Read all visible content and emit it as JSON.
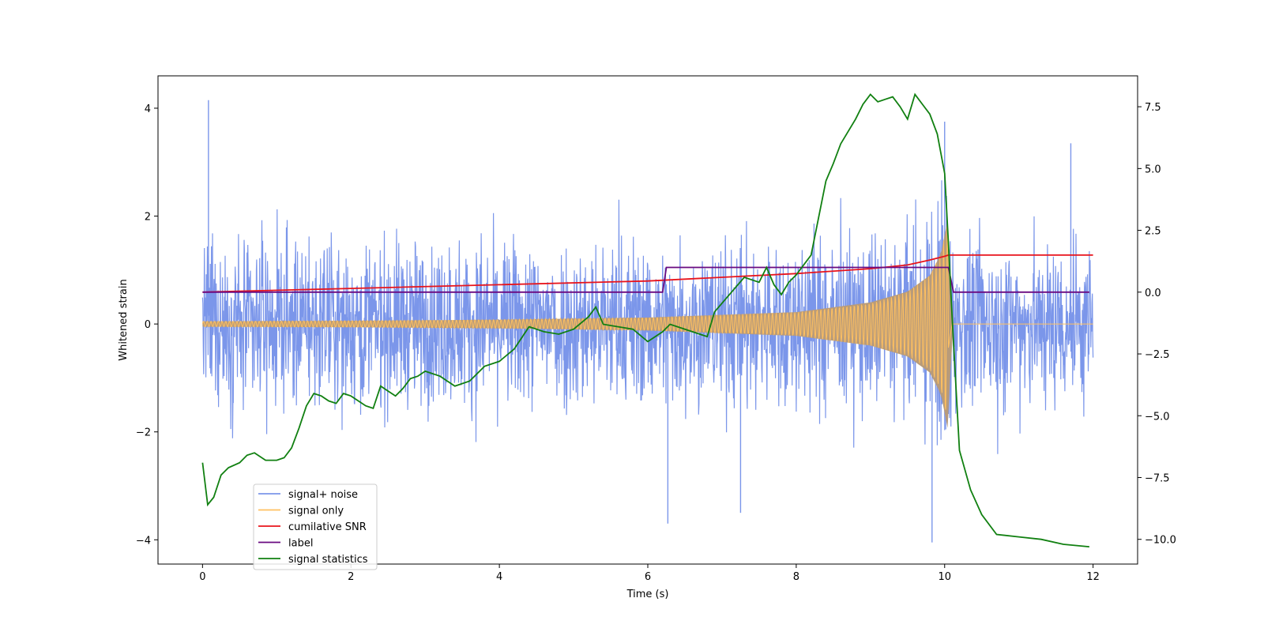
{
  "chart_data": {
    "type": "line",
    "title": "",
    "xlabel": "Time (s)",
    "ylabel": "Whitened strain",
    "xlim": [
      -0.6,
      12.6
    ],
    "ylim": [
      -4.45,
      4.6
    ],
    "y2lim": [
      -11.0,
      8.75
    ],
    "xticks": [
      0,
      2,
      4,
      6,
      8,
      10,
      12
    ],
    "xtick_labels": [
      "0",
      "2",
      "4",
      "6",
      "8",
      "10",
      "12"
    ],
    "yticks": [
      4,
      2,
      0,
      -2,
      -4
    ],
    "ytick_labels": [
      "4",
      "2",
      "0",
      "−2",
      "−4"
    ],
    "y2ticks": [
      7.5,
      5.0,
      2.5,
      0.0,
      -2.5,
      -5.0,
      -7.5,
      -10.0
    ],
    "y2tick_labels": [
      "7.5",
      "5.0",
      "2.5",
      "0.0",
      "−2.5",
      "−5.0",
      "−7.5",
      "−10.0"
    ],
    "grid": false,
    "legend_position": "lower-left",
    "series": [
      {
        "name": "signal+ noise",
        "axis": "left",
        "color": "#7b96ea",
        "kind": "noise",
        "x_range": [
          0,
          12
        ],
        "typical_range": [
          -2.6,
          2.6
        ],
        "extremes": [
          {
            "x": 0.08,
            "y": 4.15
          },
          {
            "x": 9.83,
            "y": -4.05
          },
          {
            "x": 10.0,
            "y": 3.75
          },
          {
            "x": 6.27,
            "y": -3.7
          },
          {
            "x": 11.7,
            "y": 3.35
          },
          {
            "x": 7.25,
            "y": -3.5
          }
        ]
      },
      {
        "name": "signal only",
        "axis": "left",
        "color": "#ffc060",
        "fill_color": "#b89b7a",
        "kind": "chirp",
        "envelope": {
          "x": [
            0,
            2,
            4,
            6,
            8,
            9,
            9.5,
            9.8,
            9.95,
            10.05,
            10.1,
            12
          ],
          "y": [
            0.05,
            0.06,
            0.08,
            0.12,
            0.22,
            0.4,
            0.6,
            0.9,
            1.3,
            2.0,
            0.0,
            0.0
          ]
        }
      },
      {
        "name": "cumilative SNR",
        "axis": "right",
        "color": "#e8141c",
        "x": [
          0,
          2,
          4,
          6,
          7,
          8,
          9,
          9.5,
          9.8,
          10.0,
          10.05,
          12
        ],
        "y": [
          0.0,
          0.15,
          0.3,
          0.45,
          0.6,
          0.75,
          0.95,
          1.1,
          1.3,
          1.45,
          1.5,
          1.5
        ]
      },
      {
        "name": "label",
        "axis": "right",
        "color": "#6a0a80",
        "x": [
          0,
          6.2,
          6.25,
          10.05,
          10.12,
          11.95
        ],
        "y": [
          0.0,
          0.0,
          1.0,
          1.0,
          0.0,
          0.0
        ]
      },
      {
        "name": "signal statistics",
        "axis": "right",
        "color": "#118011",
        "x": [
          0.0,
          0.07,
          0.15,
          0.25,
          0.35,
          0.5,
          0.6,
          0.7,
          0.85,
          1.0,
          1.1,
          1.2,
          1.3,
          1.4,
          1.5,
          1.6,
          1.7,
          1.8,
          1.9,
          2.0,
          2.1,
          2.2,
          2.3,
          2.4,
          2.5,
          2.6,
          2.7,
          2.8,
          2.9,
          3.0,
          3.2,
          3.4,
          3.6,
          3.8,
          4.0,
          4.2,
          4.4,
          4.5,
          4.6,
          4.8,
          5.0,
          5.2,
          5.3,
          5.4,
          5.6,
          5.8,
          6.0,
          6.2,
          6.3,
          6.4,
          6.6,
          6.8,
          6.9,
          7.1,
          7.3,
          7.5,
          7.6,
          7.7,
          7.8,
          7.9,
          8.0,
          8.2,
          8.3,
          8.4,
          8.5,
          8.6,
          8.7,
          8.8,
          8.9,
          9.0,
          9.1,
          9.2,
          9.3,
          9.4,
          9.5,
          9.6,
          9.7,
          9.8,
          9.9,
          10.0,
          10.05,
          10.1,
          10.2,
          10.35,
          10.5,
          10.7,
          11.0,
          11.3,
          11.6,
          11.95
        ],
        "y": [
          -6.9,
          -8.6,
          -8.3,
          -7.4,
          -7.1,
          -6.9,
          -6.6,
          -6.5,
          -6.8,
          -6.8,
          -6.7,
          -6.3,
          -5.5,
          -4.6,
          -4.1,
          -4.2,
          -4.4,
          -4.5,
          -4.1,
          -4.2,
          -4.4,
          -4.6,
          -4.7,
          -3.8,
          -4.0,
          -4.2,
          -3.9,
          -3.5,
          -3.4,
          -3.2,
          -3.4,
          -3.8,
          -3.6,
          -3.0,
          -2.8,
          -2.3,
          -1.4,
          -1.5,
          -1.6,
          -1.7,
          -1.5,
          -1.0,
          -0.6,
          -1.3,
          -1.4,
          -1.5,
          -2.0,
          -1.6,
          -1.3,
          -1.4,
          -1.6,
          -1.8,
          -0.8,
          -0.1,
          0.6,
          0.4,
          1.0,
          0.3,
          -0.1,
          0.4,
          0.7,
          1.5,
          3.0,
          4.5,
          5.2,
          6.0,
          6.5,
          7.0,
          7.6,
          8.0,
          7.7,
          7.8,
          7.9,
          7.5,
          7.0,
          8.0,
          7.6,
          7.2,
          6.4,
          4.8,
          2.0,
          -1.0,
          -6.4,
          -8.0,
          -9.0,
          -9.8,
          -9.9,
          -10.0,
          -10.2,
          -10.3
        ]
      }
    ]
  }
}
